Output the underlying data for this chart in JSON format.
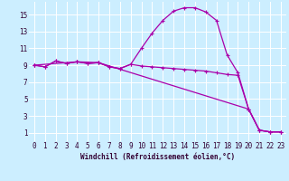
{
  "xlabel": "Windchill (Refroidissement éolien,°C)",
  "bg_color": "#cceeff",
  "grid_color": "#ffffff",
  "line_color": "#aa00aa",
  "xlim": [
    -0.5,
    23.5
  ],
  "ylim": [
    0,
    16.5
  ],
  "xticks": [
    0,
    1,
    2,
    3,
    4,
    5,
    6,
    7,
    8,
    9,
    10,
    11,
    12,
    13,
    14,
    15,
    16,
    17,
    18,
    19,
    20,
    21,
    22,
    23
  ],
  "yticks": [
    1,
    3,
    5,
    7,
    9,
    11,
    13,
    15
  ],
  "line1_x": [
    0,
    1,
    2,
    3,
    4,
    5,
    6,
    7,
    8,
    9,
    10,
    11,
    12,
    13,
    14,
    15,
    16,
    17,
    18,
    19,
    20,
    21,
    22,
    23
  ],
  "line1_y": [
    9.0,
    8.8,
    9.5,
    9.2,
    9.4,
    9.2,
    9.3,
    8.8,
    8.6,
    9.1,
    11.0,
    12.8,
    14.3,
    15.4,
    15.8,
    15.8,
    15.3,
    14.3,
    10.2,
    8.1,
    3.8,
    1.3,
    1.1,
    1.1
  ],
  "line2_x": [
    0,
    1,
    2,
    3,
    4,
    5,
    6,
    7,
    8,
    9,
    10,
    11,
    12,
    13,
    14,
    15,
    16,
    17,
    18,
    19,
    20,
    21,
    22,
    23
  ],
  "line2_y": [
    9.0,
    8.8,
    9.5,
    9.2,
    9.4,
    9.2,
    9.3,
    8.8,
    8.6,
    9.1,
    8.9,
    8.8,
    8.7,
    8.6,
    8.5,
    8.4,
    8.3,
    8.1,
    7.9,
    7.8,
    3.8,
    1.3,
    1.1,
    1.1
  ],
  "line3_x": [
    0,
    4,
    6,
    20,
    21,
    22,
    23
  ],
  "line3_y": [
    9.0,
    9.4,
    9.3,
    3.8,
    1.3,
    1.1,
    1.1
  ],
  "tick_fontsize": 5.5,
  "xlabel_fontsize": 5.5
}
